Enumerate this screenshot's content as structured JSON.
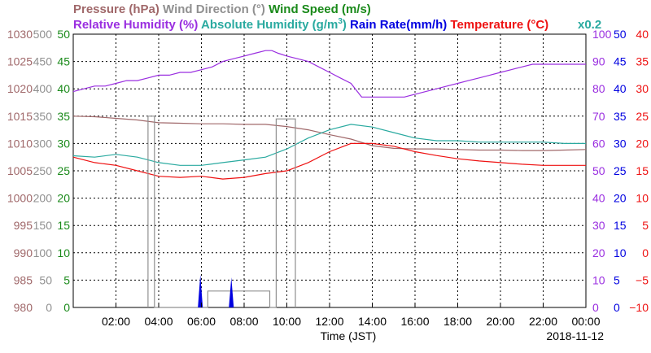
{
  "chart_data": {
    "type": "line",
    "xlabel": "Time (JST)",
    "date_label": "2018-11-12",
    "x_ticks": [
      "02:00",
      "04:00",
      "06:00",
      "08:00",
      "10:00",
      "12:00",
      "14:00",
      "16:00",
      "18:00",
      "20:00",
      "22:00",
      "00:00"
    ],
    "xlim_hours": [
      0,
      24
    ],
    "grid": true,
    "headers_line1": [
      {
        "text": "Pressure (hPa)",
        "color": "#a0686a"
      },
      {
        "text": "Wind Direction (°)",
        "color": "#909090"
      },
      {
        "text": "Wind Speed (m/s)",
        "color": "#1a8a1a"
      }
    ],
    "headers_line2": [
      {
        "text": "Relative Humidity (%)",
        "color": "#9a2ee0"
      },
      {
        "text": "Absolute Humidity (g/m",
        "color": "#2aaaa0"
      },
      {
        "text": "Rain Rate(mm/h)",
        "color": "#0000e0"
      },
      {
        "text": "Temperature (°C)",
        "color": "#ee1111"
      }
    ],
    "abs_hum_superscript": "3",
    "abs_hum_close": ")",
    "x02_label": "x0.2",
    "axes": {
      "pressure": {
        "color": "#a0686a",
        "ticks": [
          "1030",
          "1025",
          "1020",
          "1015",
          "1010",
          "1005",
          "1000",
          "995",
          "990",
          "985",
          "980"
        ],
        "range": [
          980,
          1030
        ]
      },
      "wind_dir": {
        "color": "#909090",
        "ticks": [
          "500",
          "450",
          "400",
          "350",
          "300",
          "250",
          "200",
          "150",
          "100",
          "50",
          "0"
        ],
        "range": [
          0,
          500
        ]
      },
      "wind_speed": {
        "color": "#1a8a1a",
        "ticks": [
          "50",
          "45",
          "40",
          "35",
          "30",
          "25",
          "20",
          "15",
          "10",
          "5",
          "0"
        ],
        "range": [
          0,
          50
        ]
      },
      "rel_hum": {
        "color": "#9a2ee0",
        "ticks": [
          "100",
          "90",
          "80",
          "70",
          "60",
          "50",
          "40",
          "30",
          "20",
          "10",
          "0"
        ],
        "range": [
          0,
          100
        ]
      },
      "rain_rate": {
        "color": "#0000e0",
        "ticks": [
          "50",
          "45",
          "40",
          "35",
          "30",
          "25",
          "20",
          "15",
          "10",
          "5",
          "0"
        ],
        "range": [
          0,
          50
        ]
      },
      "temperature": {
        "color": "#ee1111",
        "ticks": [
          "40",
          "35",
          "30",
          "25",
          "20",
          "15",
          "10",
          "5",
          "0",
          "−5",
          "−10"
        ],
        "range": [
          -10,
          40
        ]
      }
    },
    "series": [
      {
        "name": "Relative Humidity (%)",
        "color": "#9a2ee0",
        "x": [
          0,
          0.5,
          1,
          1.5,
          2,
          2.5,
          3,
          3.5,
          4,
          4.5,
          5,
          5.5,
          6,
          6.5,
          7,
          7.5,
          8,
          8.5,
          9,
          9.3,
          9.6,
          10,
          10.5,
          11,
          11.5,
          12,
          12.5,
          13,
          13.5,
          14,
          14.5,
          15,
          15.5,
          16,
          16.5,
          17,
          17.5,
          18,
          18.5,
          19,
          19.5,
          20,
          20.5,
          21,
          21.5,
          22,
          22.5,
          23,
          23.5,
          24
        ],
        "y": [
          79,
          80,
          81,
          81,
          82,
          83,
          83,
          84,
          85,
          85,
          86,
          86,
          87,
          88,
          90,
          91,
          92,
          93,
          94,
          94,
          93,
          92,
          91,
          90,
          88,
          86,
          84,
          82,
          77,
          77,
          77,
          77,
          77,
          78,
          79,
          80,
          81,
          82,
          83,
          84,
          85,
          86,
          87,
          88,
          89,
          89,
          89,
          89,
          89,
          89
        ]
      },
      {
        "name": "Pressure (hPa)",
        "color": "#a0686a",
        "x": [
          0,
          1,
          2,
          3,
          4,
          5,
          6,
          7,
          8,
          9,
          10,
          11,
          12,
          13,
          14,
          15,
          16,
          17,
          18,
          19,
          20,
          21,
          22,
          23,
          24
        ],
        "y": [
          1015,
          1014.9,
          1014.6,
          1014.3,
          1013.8,
          1013.7,
          1013.6,
          1013.6,
          1013.5,
          1013.5,
          1013.1,
          1012.5,
          1011.6,
          1010.8,
          1009.6,
          1009.1,
          1009,
          1009,
          1008.9,
          1008.8,
          1008.8,
          1008.7,
          1008.7,
          1008.8,
          1008.9
        ]
      },
      {
        "name": "Absolute Humidity (g/m3) x0.2",
        "color": "#2aaaa0",
        "x": [
          0,
          1,
          2,
          3,
          4,
          5,
          6,
          7,
          8,
          9,
          10,
          11,
          12,
          13,
          14,
          15,
          16,
          17,
          18,
          19,
          20,
          21,
          22,
          23,
          24
        ],
        "y": [
          55.5,
          55,
          56,
          55,
          53,
          52,
          52,
          53,
          54,
          55,
          58,
          62,
          65,
          67,
          66,
          64,
          62,
          61,
          61,
          60.5,
          60.5,
          60.5,
          60.5,
          60,
          60
        ]
      },
      {
        "name": "Temperature (°C)",
        "color": "#ee1111",
        "x": [
          0,
          1,
          2,
          3,
          4,
          5,
          6,
          7,
          8,
          9,
          10,
          11,
          12,
          13,
          14,
          15,
          16,
          17,
          18,
          19,
          20,
          21,
          22,
          23,
          24
        ],
        "y": [
          17.5,
          16.5,
          16,
          15,
          14,
          13.8,
          14,
          13.5,
          13.8,
          14.5,
          15,
          16.5,
          18.5,
          20,
          20,
          19.5,
          18.5,
          17.8,
          17.2,
          16.8,
          16.5,
          16.2,
          16,
          16,
          16
        ]
      },
      {
        "name": "Wind Direction (°)",
        "color": "#909090",
        "x": [
          3.5,
          3.5,
          3.8,
          3.8,
          6.3,
          6.3,
          9.2,
          9.2,
          9.5,
          9.5,
          10.4,
          10.4
        ],
        "y": [
          0,
          350,
          350,
          0,
          0,
          30,
          30,
          0,
          0,
          345,
          345,
          0
        ]
      }
    ],
    "rain_spikes": [
      {
        "x": 5.95,
        "y": 6
      },
      {
        "x": 7.4,
        "y": 5.5
      }
    ]
  }
}
